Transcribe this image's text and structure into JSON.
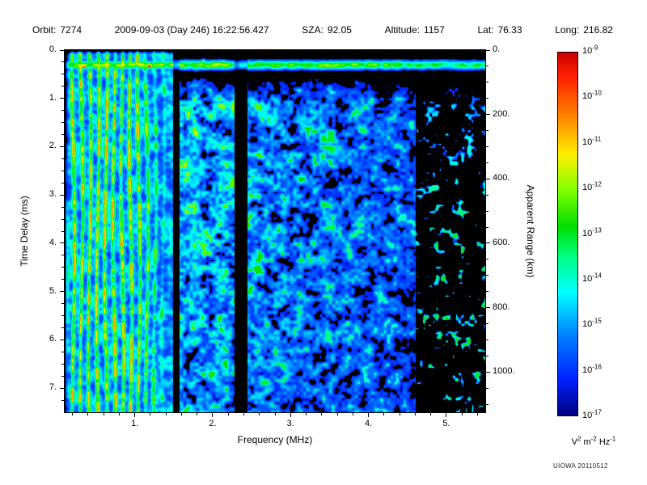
{
  "header": {
    "items": [
      {
        "key": "orbit",
        "label": "Orbit:",
        "value": "7274"
      },
      {
        "key": "datetime",
        "label": "",
        "value": "2009-09-03 (Day 246) 16:22:56.427"
      },
      {
        "key": "sza",
        "label": "SZA:",
        "value": "92.05"
      },
      {
        "key": "altitude",
        "label": "Altitude:",
        "value": "1157"
      },
      {
        "key": "lat",
        "label": "Lat:",
        "value": "76.33"
      },
      {
        "key": "long",
        "label": "Long:",
        "value": "216.82"
      }
    ]
  },
  "chart_data": {
    "type": "heatmap",
    "title": "",
    "xlabel": "Frequency (MHz)",
    "ylabel_left": "Time Delay (ms)",
    "ylabel_right": "Apparent Range (km)",
    "x_range_mhz": [
      0.1,
      5.5
    ],
    "y_range_ms": [
      0,
      7.5
    ],
    "right_range_km": [
      0,
      1125
    ],
    "x_ticks": [
      {
        "v": 1,
        "label": "1."
      },
      {
        "v": 2,
        "label": "2."
      },
      {
        "v": 3,
        "label": "3."
      },
      {
        "v": 4,
        "label": "4."
      },
      {
        "v": 5,
        "label": "5."
      }
    ],
    "y_ticks_left": [
      {
        "v": 0,
        "label": "0."
      },
      {
        "v": 1,
        "label": "1."
      },
      {
        "v": 2,
        "label": "2."
      },
      {
        "v": 3,
        "label": "3."
      },
      {
        "v": 4,
        "label": "4."
      },
      {
        "v": 5,
        "label": "5."
      },
      {
        "v": 6,
        "label": "6."
      },
      {
        "v": 7,
        "label": "7."
      }
    ],
    "y_ticks_right": [
      {
        "v": 0,
        "label": "0."
      },
      {
        "v": 200,
        "label": "200."
      },
      {
        "v": 400,
        "label": "400."
      },
      {
        "v": 600,
        "label": "600."
      },
      {
        "v": 800,
        "label": "800."
      },
      {
        "v": 1000,
        "label": "1000."
      }
    ],
    "minor_ticks": {
      "x_step_mhz": 0.2,
      "left_step_ms": 0.25,
      "right_step_km": 50
    },
    "grid": false,
    "legend_position": "right-colorbar",
    "colorbar": {
      "scale": "log10",
      "exponent_ticks": [
        -9,
        -10,
        -11,
        -12,
        -13,
        -14,
        -15,
        -16,
        -17
      ],
      "unit_parts": [
        [
          "V",
          "2"
        ],
        [
          "m",
          "-2"
        ],
        [
          "Hz",
          "-1"
        ]
      ],
      "colormap_stops": [
        {
          "pos": 0.0,
          "color": "#000080"
        },
        {
          "pos": 0.1,
          "color": "#0020ff"
        },
        {
          "pos": 0.22,
          "color": "#0080ff"
        },
        {
          "pos": 0.34,
          "color": "#00ffff"
        },
        {
          "pos": 0.44,
          "color": "#00ff80"
        },
        {
          "pos": 0.52,
          "color": "#00dd00"
        },
        {
          "pos": 0.62,
          "color": "#80ff00"
        },
        {
          "pos": 0.72,
          "color": "#ffee00"
        },
        {
          "pos": 0.82,
          "color": "#ff8800"
        },
        {
          "pos": 0.93,
          "color": "#ff2200"
        },
        {
          "pos": 1.0,
          "color": "#cc0000"
        }
      ]
    },
    "features": {
      "description": "AIS ionogram: bright surface-reflection band near 0.3 ms across all frequencies; strong vertical electron-plasma-oscillation harmonic stripes below ~1.5 MHz; diffuse blue ionospheric scatter from ~1.5 to ~4.6 MHz fading with frequency; sparse speckle above 4.6 MHz; dark dropout columns near 1.5 and 2.35 MHz.",
      "surface_band_ms": 0.3,
      "plasma_stripe_spacing_mhz": 0.105,
      "plasma_stripes_max_mhz": 1.5,
      "diffuse_cutoff_mhz": 4.6,
      "gap_columns_mhz": [
        [
          1.49,
          1.57
        ],
        [
          2.28,
          2.44
        ]
      ],
      "noise_seed": 987654
    }
  },
  "footer": {
    "credit": "UIOWA 20110512"
  }
}
